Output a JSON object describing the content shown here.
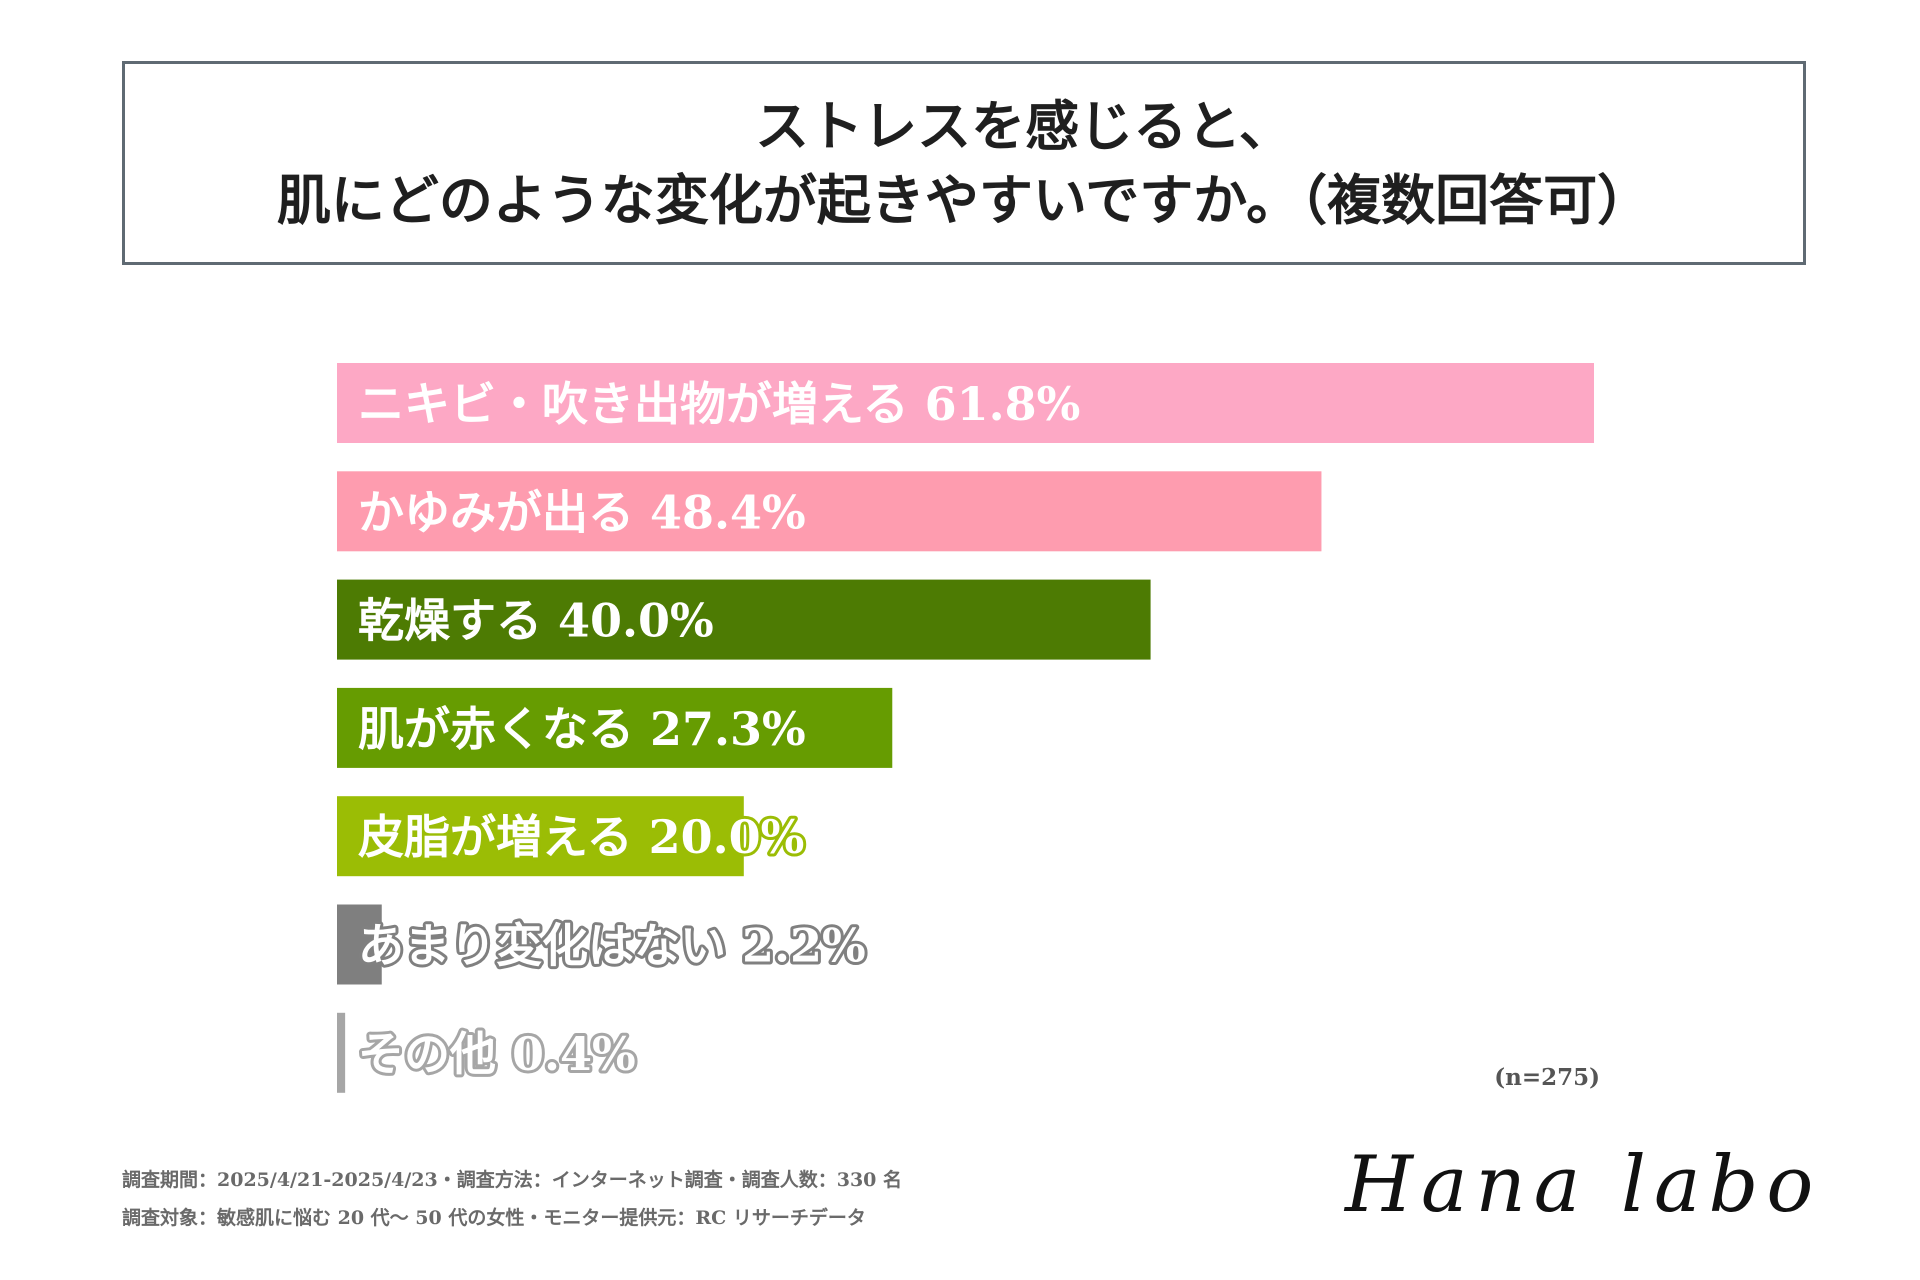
{
  "title": {
    "line1": "ストレスを感じると、",
    "line2": "肌にどのような変化が起きやすいですか。（複数回答可）"
  },
  "chart_data": {
    "type": "bar",
    "orientation": "horizontal",
    "categories": [
      "ニキビ・吹き出物が増える",
      "かゆみが出る",
      "乾燥する",
      "肌が赤くなる",
      "皮脂が増える",
      "あまり変化はない",
      "その他"
    ],
    "values": [
      61.8,
      48.4,
      40.0,
      27.3,
      20.0,
      2.2,
      0.4
    ],
    "labels": [
      "ニキビ・吹き出物が増える  61.8%",
      "かゆみが出る  48.4%",
      "乾燥する  40.0%",
      "肌が赤くなる  27.3%",
      "皮脂が増える  20.0%",
      "あまり変化はない  2.2%",
      "その他  0.4%"
    ],
    "colors": [
      "#fda8c5",
      "#fe9caf",
      "#4d7b03",
      "#669c01",
      "#9bbd05",
      "#7f7f7f",
      "#a6a6a6"
    ],
    "label_text_color": "#ffffff",
    "label_outline_colors": [
      "",
      "",
      "",
      "",
      "#9bbd05",
      "#808080",
      "#a6a6a6"
    ],
    "xlim": [
      0,
      61.8
    ],
    "unit": "%",
    "title": "ストレスを感じると、肌にどのような変化が起きやすいですか。（複数回答可）"
  },
  "sample_note": "(n=275)",
  "footer": {
    "line1": "調査期間：2025/4/21-2025/4/23・調査方法：インターネット調査・調査人数：330 名",
    "line2": "調査対象：敏感肌に悩む 20 代〜 50 代の女性・モニター提供元：RC リサーチデータ"
  },
  "logo_text": "Hana labo"
}
